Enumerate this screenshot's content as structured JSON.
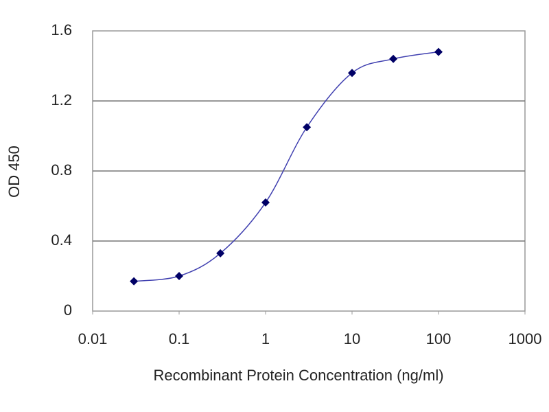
{
  "chart_data": {
    "type": "scatter",
    "xlabel": "Recombinant Protein Concentration (ng/ml)",
    "ylabel": "OD 450",
    "x": [
      0.03,
      0.1,
      0.3,
      1,
      3,
      10,
      30,
      100
    ],
    "values": [
      0.17,
      0.2,
      0.33,
      0.62,
      1.05,
      1.36,
      1.44,
      1.48
    ],
    "color": "#000066",
    "line_color": "#4040b0",
    "xscale": "log",
    "xlim": [
      0.01,
      1000
    ],
    "xticks": [
      0.01,
      0.1,
      1,
      10,
      100,
      1000
    ],
    "ylim": [
      0,
      1.6
    ],
    "yticks": [
      0,
      0.4,
      0.8,
      1.2,
      1.6
    ],
    "grid": true
  }
}
